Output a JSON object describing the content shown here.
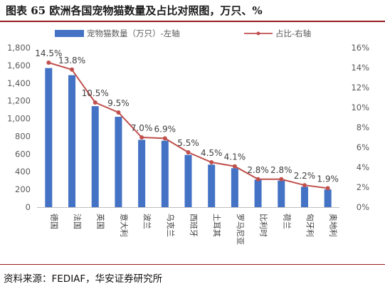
{
  "title": "图表 65  欧洲各国宠物猫数量及占比对照图，万只、%",
  "source": "资料来源：FEDIAF，华安证券研究所",
  "chart_data": {
    "type": "bar+line",
    "categories": [
      "德国",
      "法国",
      "英国",
      "意大利",
      "波兰",
      "乌克兰",
      "西班牙",
      "土耳其",
      "罗马尼亚",
      "比利时",
      "荷兰",
      "匈牙利",
      "奥地利"
    ],
    "series": [
      {
        "name": "宠物猫数量（万只）-左轴",
        "type": "bar",
        "axis": "left",
        "color": "#4472c4",
        "values": [
          1570,
          1490,
          1140,
          1020,
          760,
          750,
          590,
          480,
          440,
          310,
          300,
          230,
          200
        ]
      },
      {
        "name": "占比-右轴",
        "type": "line",
        "axis": "right",
        "color": "#c0504d",
        "values": [
          14.5,
          13.8,
          10.5,
          9.5,
          7.0,
          6.9,
          5.5,
          4.5,
          4.1,
          2.8,
          2.8,
          2.2,
          1.9
        ],
        "labels": [
          "14.5%",
          "13.8%",
          "10.5%",
          "9.5%",
          "7.0%",
          "6.9%",
          "5.5%",
          "4.5%",
          "4.1%",
          "2.8%",
          "2.8%",
          "2.2%",
          "1.9%"
        ]
      }
    ],
    "y_left": {
      "min": 0,
      "max": 1800,
      "step": 200,
      "ticks": [
        "0",
        "200",
        "400",
        "600",
        "800",
        "1,000",
        "1,200",
        "1,400",
        "1,600",
        "1,800"
      ]
    },
    "y_right": {
      "min": 0,
      "max": 16,
      "step": 2,
      "ticks": [
        "0%",
        "2%",
        "4%",
        "6%",
        "8%",
        "10%",
        "12%",
        "14%",
        "16%"
      ]
    },
    "legend_position": "top",
    "grid": false
  }
}
